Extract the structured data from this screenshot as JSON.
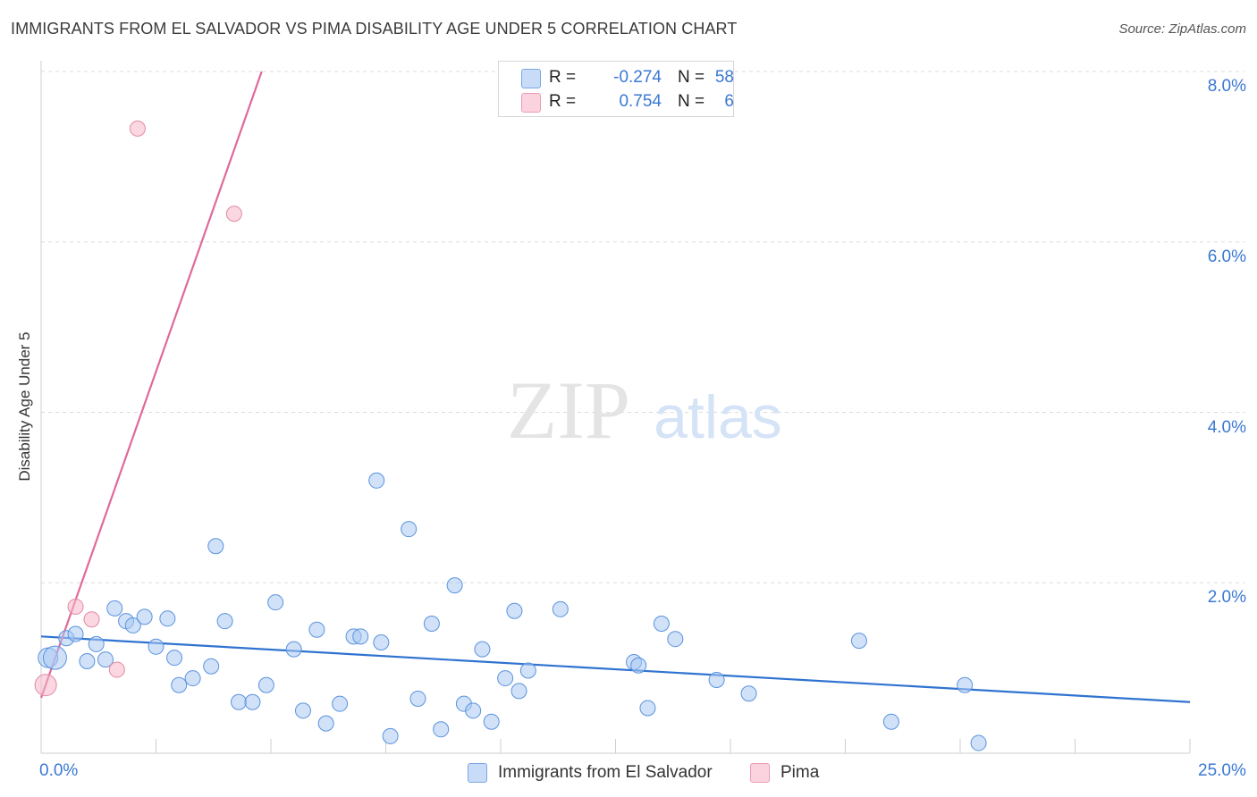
{
  "title": "IMMIGRANTS FROM EL SALVADOR VS PIMA DISABILITY AGE UNDER 5 CORRELATION CHART",
  "source": "Source: ZipAtlas.com",
  "watermark": {
    "zip": "ZIP",
    "atlas": "atlas"
  },
  "stats": [
    {
      "r_label": "R =",
      "r_value": "-0.274",
      "n_label": "N =",
      "n_value": "58",
      "color": "#a9c8f2"
    },
    {
      "r_label": "R =",
      "r_value": "0.754",
      "n_label": "N =",
      "n_value": "6",
      "color": "#f7b6c9"
    }
  ],
  "legend": [
    {
      "label": "Immigrants from El Salvador",
      "color": "#a9c8f2"
    },
    {
      "label": "Pima",
      "color": "#f7b6c9"
    }
  ],
  "chart_data": {
    "type": "scatter",
    "title": "IMMIGRANTS FROM EL SALVADOR VS PIMA DISABILITY AGE UNDER 5 CORRELATION CHART",
    "xlabel": "",
    "ylabel": "Disability Age Under 5",
    "xlim": [
      0,
      25
    ],
    "ylim": [
      0,
      8
    ],
    "x_tick_labels": [
      "0.0%",
      "25.0%"
    ],
    "y_ticks": [
      2,
      4,
      6,
      8
    ],
    "y_tick_labels": [
      "2.0%",
      "4.0%",
      "6.0%",
      "8.0%"
    ],
    "grid": true,
    "series": [
      {
        "name": "Immigrants from El Salvador",
        "color": "#a9c8f2",
        "stroke": "#5a93de",
        "points": [
          [
            0.15,
            1.12
          ],
          [
            0.3,
            1.12
          ],
          [
            0.55,
            1.35
          ],
          [
            0.75,
            1.4
          ],
          [
            1.0,
            1.08
          ],
          [
            1.2,
            1.28
          ],
          [
            1.4,
            1.1
          ],
          [
            1.6,
            1.7
          ],
          [
            1.85,
            1.55
          ],
          [
            2.0,
            1.5
          ],
          [
            2.25,
            1.6
          ],
          [
            2.5,
            1.25
          ],
          [
            2.75,
            1.58
          ],
          [
            2.9,
            1.12
          ],
          [
            3.0,
            0.8
          ],
          [
            3.3,
            0.88
          ],
          [
            3.7,
            1.02
          ],
          [
            3.8,
            2.43
          ],
          [
            4.0,
            1.55
          ],
          [
            4.3,
            0.6
          ],
          [
            4.6,
            0.6
          ],
          [
            4.9,
            0.8
          ],
          [
            5.1,
            1.77
          ],
          [
            5.5,
            1.22
          ],
          [
            5.7,
            0.5
          ],
          [
            6.0,
            1.45
          ],
          [
            6.2,
            0.35
          ],
          [
            6.5,
            0.58
          ],
          [
            6.8,
            1.37
          ],
          [
            6.95,
            1.37
          ],
          [
            7.3,
            3.2
          ],
          [
            7.4,
            1.3
          ],
          [
            7.6,
            0.2
          ],
          [
            8.0,
            2.63
          ],
          [
            8.2,
            0.64
          ],
          [
            8.5,
            1.52
          ],
          [
            8.7,
            0.28
          ],
          [
            9.0,
            1.97
          ],
          [
            9.2,
            0.58
          ],
          [
            9.4,
            0.5
          ],
          [
            9.6,
            1.22
          ],
          [
            9.8,
            0.37
          ],
          [
            10.1,
            0.88
          ],
          [
            10.3,
            1.67
          ],
          [
            10.4,
            0.73
          ],
          [
            10.6,
            0.97
          ],
          [
            11.3,
            1.69
          ],
          [
            12.9,
            1.07
          ],
          [
            13.0,
            1.03
          ],
          [
            13.2,
            0.53
          ],
          [
            13.5,
            1.52
          ],
          [
            13.8,
            1.34
          ],
          [
            14.7,
            0.86
          ],
          [
            15.4,
            0.7
          ],
          [
            17.8,
            1.32
          ],
          [
            18.5,
            0.37
          ],
          [
            20.1,
            0.8
          ],
          [
            20.4,
            0.12
          ]
        ]
      },
      {
        "name": "Pima",
        "color": "#f7b6c9",
        "stroke": "#e28aa6",
        "points": [
          [
            0.1,
            0.8
          ],
          [
            0.75,
            1.72
          ],
          [
            1.1,
            1.57
          ],
          [
            1.65,
            0.98
          ],
          [
            2.1,
            7.33
          ],
          [
            4.2,
            6.33
          ]
        ]
      }
    ],
    "trend_lines": [
      {
        "series": "Immigrants from El Salvador",
        "color": "#2f73d0",
        "x": [
          0,
          25
        ],
        "y": [
          1.37,
          0.6
        ]
      },
      {
        "series": "Pima",
        "color": "#e0699a",
        "x": [
          0,
          4.8
        ],
        "y": [
          0.65,
          8.0
        ]
      }
    ]
  }
}
